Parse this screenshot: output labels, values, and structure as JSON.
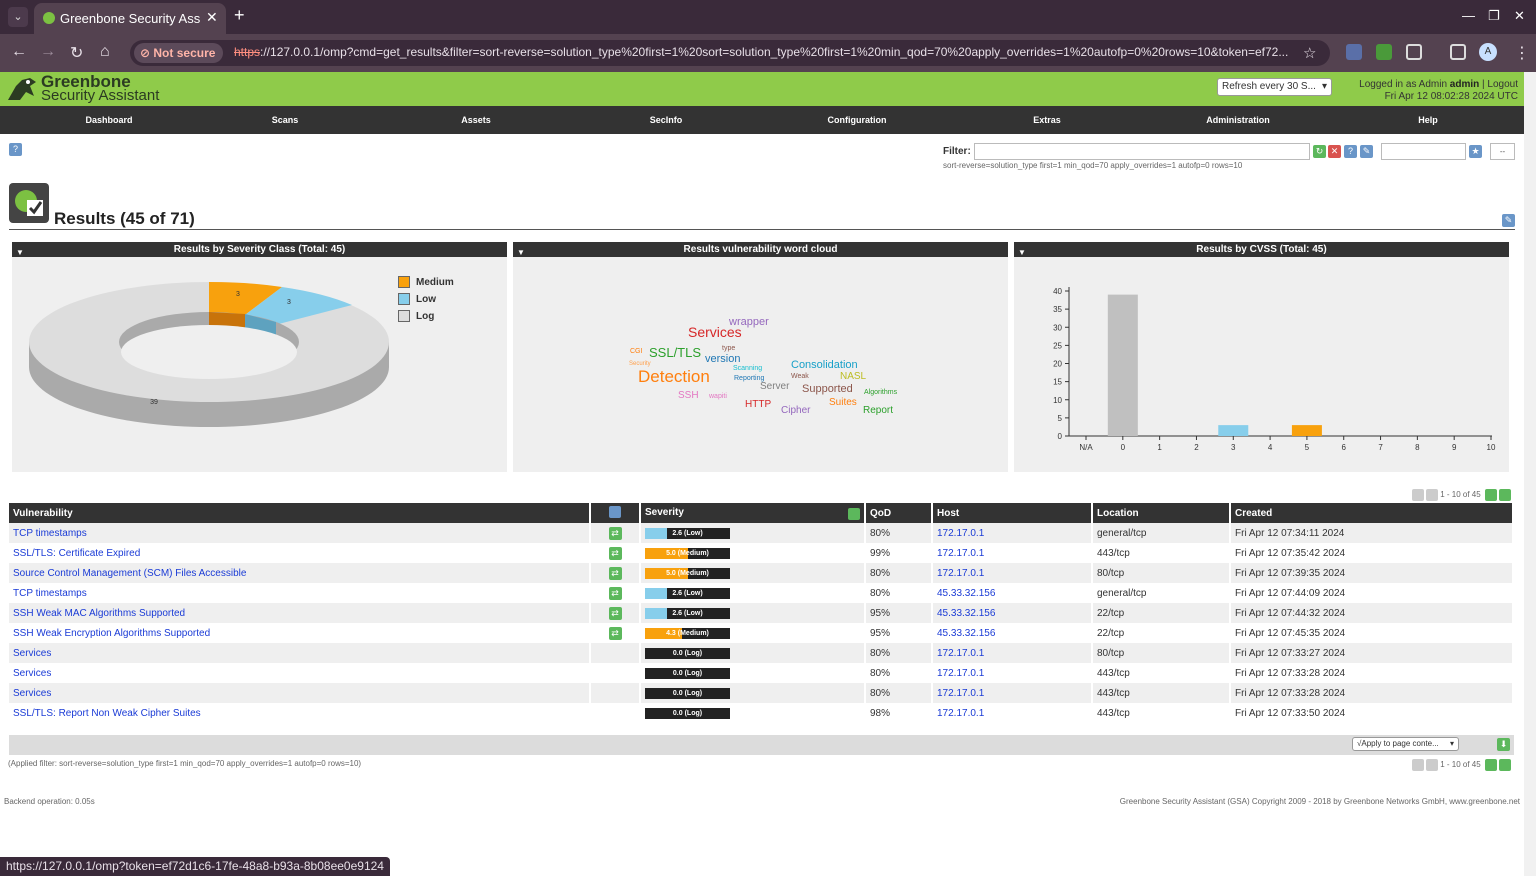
{
  "browser": {
    "tab_title": "Greenbone Security Assi",
    "not_secure": "Not secure",
    "url_scheme": "https",
    "url_rest": "://127.0.0.1/omp?cmd=get_results&filter=sort-reverse=solution_type%20first=1%20sort=solution_type%20first=1%20min_qod=70%20apply_overrides=1%20autofp=0%20rows=10&token=ef72...",
    "profile_initial": "A",
    "status_url": "https://127.0.0.1/omp?token=ef72d1c6-17fe-48a8-b93a-8b08ee0e9124"
  },
  "header": {
    "logo_line1": "Greenbone",
    "logo_line2": "Security Assistant",
    "refresh": "Refresh every 30 S...",
    "logged_in_prefix": "Logged in as  Admin",
    "user": "admin",
    "logout": "Logout",
    "datetime": "Fri Apr 12 08:02:28 2024 UTC",
    "brand_color": "#8fcb4a"
  },
  "nav": [
    "Dashboard",
    "Scans",
    "Assets",
    "SecInfo",
    "Configuration",
    "Extras",
    "Administration",
    "Help"
  ],
  "filter": {
    "label": "Filter:",
    "value": "",
    "applied": "sort-reverse=solution_type first=1 min_qod=70 apply_overrides=1 autofp=0 rows=10",
    "dropdown": "--"
  },
  "page_title": "Results (45 of 71)",
  "panels": {
    "severity": {
      "title": "Results by Severity Class (Total: 45)",
      "legend": [
        {
          "label": "Medium",
          "color": "#f8a10d"
        },
        {
          "label": "Low",
          "color": "#87ceeb"
        },
        {
          "label": "Log",
          "color": "#dddddd"
        }
      ],
      "slices": [
        {
          "label": "Medium",
          "value": 3,
          "color": "#f8a10d"
        },
        {
          "label": "Low",
          "value": 3,
          "color": "#87ceeb"
        },
        {
          "label": "Log",
          "value": 39,
          "color": "#dddddd"
        }
      ]
    },
    "wordcloud": {
      "title": "Results vulnerability word cloud",
      "words": [
        {
          "t": "wrapper",
          "c": "#9467bd"
        },
        {
          "t": "Services",
          "c": "#d62728"
        },
        {
          "t": "type",
          "c": "#8c564b"
        },
        {
          "t": "CGI",
          "c": "#ff7f0e"
        },
        {
          "t": "SSL/TLS",
          "c": "#2ca02c"
        },
        {
          "t": "version",
          "c": "#1f77b4"
        },
        {
          "t": "Security",
          "c": "#ff9f4a"
        },
        {
          "t": "Scanning",
          "c": "#17becf"
        },
        {
          "t": "Consolidation",
          "c": "#17a0c8"
        },
        {
          "t": "Detection",
          "c": "#ff7f0e"
        },
        {
          "t": "Reporting",
          "c": "#1f77b4"
        },
        {
          "t": "Weak",
          "c": "#8c564b"
        },
        {
          "t": "NASL",
          "c": "#bcbd22"
        },
        {
          "t": "Server",
          "c": "#7f7f7f"
        },
        {
          "t": "Supported",
          "c": "#8c564b"
        },
        {
          "t": "Algorithms",
          "c": "#2ca02c"
        },
        {
          "t": "SSH",
          "c": "#e377c2"
        },
        {
          "t": "wapiti",
          "c": "#e377c2"
        },
        {
          "t": "HTTP",
          "c": "#d62728"
        },
        {
          "t": "Suites",
          "c": "#ff7f0e"
        },
        {
          "t": "Cipher",
          "c": "#9467bd"
        },
        {
          "t": "Report",
          "c": "#2ca02c"
        }
      ]
    },
    "cvss": {
      "title": "Results by CVSS (Total: 45)"
    }
  },
  "chart_data": {
    "type": "bar",
    "title": "Results by CVSS (Total: 45)",
    "categories": [
      "N/A",
      "0",
      "1",
      "2",
      "3",
      "4",
      "5",
      "6",
      "7",
      "8",
      "9",
      "10"
    ],
    "values": [
      0,
      39,
      0,
      0,
      3,
      0,
      3,
      0,
      0,
      0,
      0,
      0
    ],
    "colors": [
      "#c0c0c0",
      "#c0c0c0",
      "#87ceeb",
      "#87ceeb",
      "#87ceeb",
      "#f8a10d",
      "#f8a10d",
      "#f8a10d",
      "#d9534f",
      "#d9534f",
      "#d9534f",
      "#d9534f"
    ],
    "yticks": [
      0,
      5,
      10,
      15,
      20,
      25,
      30,
      35,
      40
    ],
    "ylim": [
      0,
      40
    ]
  },
  "table": {
    "pager": "1 - 10 of 45",
    "headers": {
      "vulnerability": "Vulnerability",
      "severity": "Severity",
      "qod": "QoD",
      "host": "Host",
      "location": "Location",
      "created": "Created"
    },
    "rows": [
      {
        "vuln": "TCP timestamps",
        "note": true,
        "sev": 2.6,
        "sev_label": "2.6 (Low)",
        "sev_color": "#87ceeb",
        "qod": "80%",
        "host": "172.17.0.1",
        "loc": "general/tcp",
        "created": "Fri Apr 12 07:34:11 2024"
      },
      {
        "vuln": "SSL/TLS: Certificate Expired",
        "note": true,
        "sev": 5.0,
        "sev_label": "5.0 (Medium)",
        "sev_color": "#f8a10d",
        "qod": "99%",
        "host": "172.17.0.1",
        "loc": "443/tcp",
        "created": "Fri Apr 12 07:35:42 2024"
      },
      {
        "vuln": "Source Control Management (SCM) Files Accessible",
        "note": true,
        "sev": 5.0,
        "sev_label": "5.0 (Medium)",
        "sev_color": "#f8a10d",
        "qod": "80%",
        "host": "172.17.0.1",
        "loc": "80/tcp",
        "created": "Fri Apr 12 07:39:35 2024"
      },
      {
        "vuln": "TCP timestamps",
        "note": true,
        "sev": 2.6,
        "sev_label": "2.6 (Low)",
        "sev_color": "#87ceeb",
        "qod": "80%",
        "host": "45.33.32.156",
        "loc": "general/tcp",
        "created": "Fri Apr 12 07:44:09 2024"
      },
      {
        "vuln": "SSH Weak MAC Algorithms Supported",
        "note": true,
        "sev": 2.6,
        "sev_label": "2.6 (Low)",
        "sev_color": "#87ceeb",
        "qod": "95%",
        "host": "45.33.32.156",
        "loc": "22/tcp",
        "created": "Fri Apr 12 07:44:32 2024"
      },
      {
        "vuln": "SSH Weak Encryption Algorithms Supported",
        "note": true,
        "sev": 4.3,
        "sev_label": "4.3 (Medium)",
        "sev_color": "#f8a10d",
        "qod": "95%",
        "host": "45.33.32.156",
        "loc": "22/tcp",
        "created": "Fri Apr 12 07:45:35 2024"
      },
      {
        "vuln": "Services",
        "note": false,
        "sev": 0.0,
        "sev_label": "0.0 (Log)",
        "sev_color": "#222222",
        "qod": "80%",
        "host": "172.17.0.1",
        "loc": "80/tcp",
        "created": "Fri Apr 12 07:33:27 2024"
      },
      {
        "vuln": "Services",
        "note": false,
        "sev": 0.0,
        "sev_label": "0.0 (Log)",
        "sev_color": "#222222",
        "qod": "80%",
        "host": "172.17.0.1",
        "loc": "443/tcp",
        "created": "Fri Apr 12 07:33:28 2024"
      },
      {
        "vuln": "Services",
        "note": false,
        "sev": 0.0,
        "sev_label": "0.0 (Log)",
        "sev_color": "#222222",
        "qod": "80%",
        "host": "172.17.0.1",
        "loc": "443/tcp",
        "created": "Fri Apr 12 07:33:28 2024"
      },
      {
        "vuln": "SSL/TLS: Report Non Weak Cipher Suites",
        "note": false,
        "sev": 0.0,
        "sev_label": "0.0 (Log)",
        "sev_color": "#222222",
        "qod": "98%",
        "host": "172.17.0.1",
        "loc": "443/tcp",
        "created": "Fri Apr 12 07:33:50 2024"
      }
    ],
    "apply_select": "√Apply to page conte...",
    "applied_filter": "(Applied filter: sort-reverse=solution_type first=1 min_qod=70 apply_overrides=1 autofp=0 rows=10)"
  },
  "footer": {
    "backend": "Backend operation: 0.05s",
    "copyright": "Greenbone Security Assistant (GSA) Copyright 2009 - 2018 by Greenbone Networks GmbH, www.greenbone.net"
  }
}
